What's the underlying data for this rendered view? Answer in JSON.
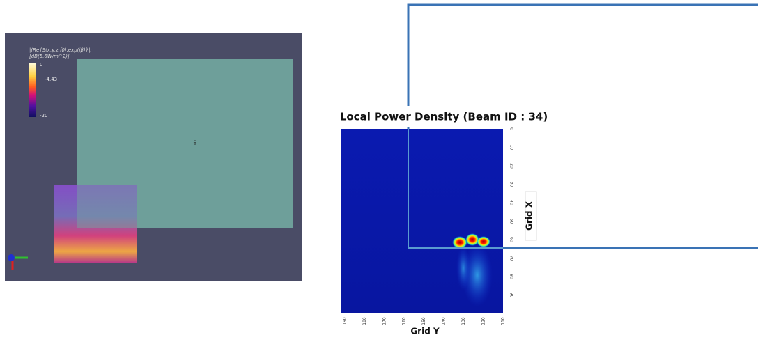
{
  "viewer": {
    "legend_title": [
      "|(Re{S(x,y,z,f0).exp(jβ)}|:",
      "[dB(5.6W/m^2)]"
    ],
    "legend_labels": [
      "0",
      "-4.43",
      "-20"
    ],
    "center_label": "θ"
  },
  "heatmap": {
    "title": "Local Power Density (Beam ID : 34)",
    "x_axis_label": "Grid Y",
    "y_axis_label": "Grid X",
    "x_ticks": [
      "190",
      "180",
      "170",
      "160",
      "150",
      "140",
      "130",
      "120",
      "110"
    ],
    "y_ticks": [
      "0",
      "10",
      "20",
      "30",
      "40",
      "50",
      "60",
      "70",
      "80",
      "90"
    ]
  }
}
